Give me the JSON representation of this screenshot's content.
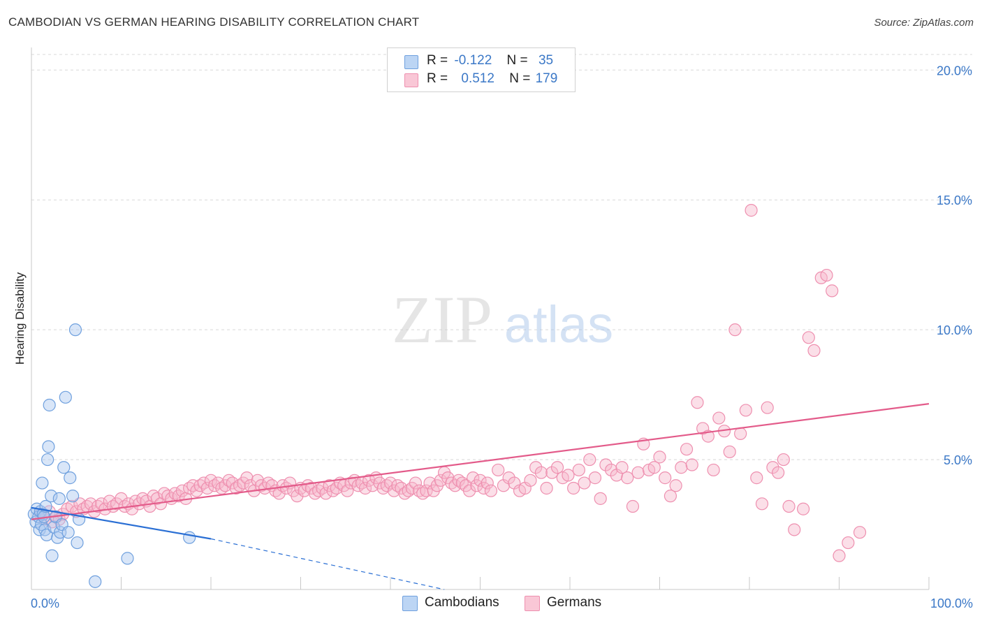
{
  "title": "CAMBODIAN VS GERMAN HEARING DISABILITY CORRELATION CHART",
  "source": "Source: ZipAtlas.com",
  "watermark": {
    "zip": "ZIP",
    "atlas": "atlas"
  },
  "legend": {
    "rows": [
      {
        "r_label": "R =",
        "r_value": "-0.122",
        "n_label": "N =",
        "n_value": "35"
      },
      {
        "r_label": "R =",
        "r_value": "0.512",
        "n_label": "N =",
        "n_value": "179"
      }
    ]
  },
  "bottom_legend": {
    "cambodians": "Cambodians",
    "germans": "Germans"
  },
  "colors": {
    "cambodian_fill": "#aac8f0",
    "cambodian_stroke": "#6fa0de",
    "cambodian_line": "#2a6fd4",
    "german_fill": "#f7b9cc",
    "german_stroke": "#ee8faf",
    "german_line": "#e35b8a",
    "tick_text": "#3b78c7",
    "grid": "#d8d8d8"
  },
  "chart_data": {
    "type": "scatter",
    "title": "CAMBODIAN VS GERMAN HEARING DISABILITY CORRELATION CHART",
    "xlabel": "",
    "ylabel": "Hearing Disability",
    "xlim": [
      0,
      100
    ],
    "ylim": [
      0,
      20.6
    ],
    "x_tick_labels": [
      "0.0%",
      "100.0%"
    ],
    "y_ticks": [
      5,
      10,
      15,
      20
    ],
    "y_tick_labels": [
      "5.0%",
      "10.0%",
      "15.0%",
      "20.0%"
    ],
    "series": [
      {
        "name": "Cambodians",
        "r": -0.122,
        "n": 35,
        "trend": {
          "x_start": 0,
          "y_start": 3.15,
          "x_solid_end": 20,
          "y_solid_end": 1.95,
          "x_dash_end": 46,
          "y_dash_end": 0.0
        },
        "points": [
          [
            0.3,
            2.9
          ],
          [
            0.5,
            2.6
          ],
          [
            0.6,
            3.1
          ],
          [
            0.8,
            2.8
          ],
          [
            0.9,
            2.3
          ],
          [
            1.0,
            3.0
          ],
          [
            1.1,
            2.5
          ],
          [
            1.2,
            4.1
          ],
          [
            1.3,
            2.9
          ],
          [
            1.4,
            2.8
          ],
          [
            1.5,
            2.3
          ],
          [
            1.6,
            3.2
          ],
          [
            1.7,
            2.1
          ],
          [
            1.8,
            5.0
          ],
          [
            1.9,
            5.5
          ],
          [
            2.0,
            7.1
          ],
          [
            2.2,
            3.6
          ],
          [
            2.3,
            1.3
          ],
          [
            2.5,
            2.4
          ],
          [
            2.7,
            2.8
          ],
          [
            2.9,
            2.0
          ],
          [
            3.1,
            3.5
          ],
          [
            3.2,
            2.2
          ],
          [
            3.4,
            2.5
          ],
          [
            3.6,
            4.7
          ],
          [
            3.8,
            7.4
          ],
          [
            4.1,
            2.2
          ],
          [
            4.3,
            4.3
          ],
          [
            4.6,
            3.6
          ],
          [
            4.9,
            10.0
          ],
          [
            5.1,
            1.8
          ],
          [
            5.3,
            2.7
          ],
          [
            7.1,
            0.3
          ],
          [
            10.7,
            1.2
          ],
          [
            17.6,
            2.0
          ]
        ]
      },
      {
        "name": "Germans",
        "r": 0.512,
        "n": 179,
        "trend": {
          "x_start": 0,
          "y_start": 2.7,
          "x_end": 100,
          "y_end": 7.15
        },
        "points": [
          [
            1.0,
            2.9
          ],
          [
            1.5,
            2.7
          ],
          [
            2.0,
            3.0
          ],
          [
            2.3,
            2.6
          ],
          [
            2.8,
            2.8
          ],
          [
            3.1,
            2.7
          ],
          [
            3.5,
            2.9
          ],
          [
            4.0,
            3.1
          ],
          [
            4.5,
            3.2
          ],
          [
            5.0,
            3.0
          ],
          [
            5.4,
            3.3
          ],
          [
            5.8,
            3.1
          ],
          [
            6.2,
            3.2
          ],
          [
            6.6,
            3.3
          ],
          [
            7.0,
            3.0
          ],
          [
            7.4,
            3.2
          ],
          [
            7.8,
            3.3
          ],
          [
            8.2,
            3.1
          ],
          [
            8.7,
            3.4
          ],
          [
            9.1,
            3.2
          ],
          [
            9.5,
            3.3
          ],
          [
            10.0,
            3.5
          ],
          [
            10.4,
            3.2
          ],
          [
            10.8,
            3.3
          ],
          [
            11.2,
            3.1
          ],
          [
            11.6,
            3.4
          ],
          [
            12.0,
            3.3
          ],
          [
            12.4,
            3.5
          ],
          [
            12.8,
            3.4
          ],
          [
            13.2,
            3.2
          ],
          [
            13.6,
            3.6
          ],
          [
            14.0,
            3.5
          ],
          [
            14.4,
            3.3
          ],
          [
            14.8,
            3.7
          ],
          [
            15.2,
            3.6
          ],
          [
            15.6,
            3.5
          ],
          [
            16.0,
            3.7
          ],
          [
            16.4,
            3.6
          ],
          [
            16.8,
            3.8
          ],
          [
            17.2,
            3.5
          ],
          [
            17.6,
            3.9
          ],
          [
            18.0,
            4.0
          ],
          [
            18.4,
            3.8
          ],
          [
            18.8,
            4.0
          ],
          [
            19.2,
            4.1
          ],
          [
            19.6,
            3.9
          ],
          [
            20.0,
            4.2
          ],
          [
            20.4,
            4.0
          ],
          [
            20.8,
            4.1
          ],
          [
            21.2,
            3.9
          ],
          [
            21.6,
            4.0
          ],
          [
            22.0,
            4.2
          ],
          [
            22.4,
            4.1
          ],
          [
            22.8,
            3.9
          ],
          [
            23.2,
            4.0
          ],
          [
            23.6,
            4.1
          ],
          [
            24.0,
            4.3
          ],
          [
            24.4,
            4.0
          ],
          [
            24.8,
            3.8
          ],
          [
            25.2,
            4.2
          ],
          [
            25.6,
            4.0
          ],
          [
            26.0,
            3.9
          ],
          [
            26.4,
            4.1
          ],
          [
            26.8,
            4.0
          ],
          [
            27.2,
            3.8
          ],
          [
            27.6,
            3.7
          ],
          [
            28.0,
            4.0
          ],
          [
            28.4,
            3.9
          ],
          [
            28.8,
            4.1
          ],
          [
            29.2,
            3.8
          ],
          [
            29.6,
            3.6
          ],
          [
            30.0,
            3.9
          ],
          [
            30.4,
            3.8
          ],
          [
            30.8,
            4.0
          ],
          [
            31.2,
            3.9
          ],
          [
            31.6,
            3.7
          ],
          [
            32.0,
            3.8
          ],
          [
            32.4,
            3.9
          ],
          [
            32.8,
            3.7
          ],
          [
            33.2,
            4.0
          ],
          [
            33.6,
            3.8
          ],
          [
            34.0,
            3.9
          ],
          [
            34.4,
            4.1
          ],
          [
            34.8,
            4.0
          ],
          [
            35.2,
            3.8
          ],
          [
            35.6,
            4.1
          ],
          [
            36.0,
            4.2
          ],
          [
            36.4,
            4.0
          ],
          [
            36.8,
            4.1
          ],
          [
            37.2,
            3.9
          ],
          [
            37.6,
            4.2
          ],
          [
            38.0,
            4.0
          ],
          [
            38.4,
            4.3
          ],
          [
            38.8,
            4.1
          ],
          [
            39.2,
            3.9
          ],
          [
            39.6,
            4.0
          ],
          [
            40.0,
            4.1
          ],
          [
            40.4,
            3.8
          ],
          [
            40.8,
            4.0
          ],
          [
            41.2,
            3.9
          ],
          [
            41.6,
            3.7
          ],
          [
            42.0,
            3.8
          ],
          [
            42.4,
            3.9
          ],
          [
            42.8,
            4.1
          ],
          [
            43.2,
            3.8
          ],
          [
            43.6,
            3.7
          ],
          [
            44.0,
            3.8
          ],
          [
            44.4,
            4.1
          ],
          [
            44.8,
            3.8
          ],
          [
            45.2,
            4.0
          ],
          [
            45.6,
            4.2
          ],
          [
            46.0,
            4.5
          ],
          [
            46.4,
            4.3
          ],
          [
            46.8,
            4.1
          ],
          [
            47.2,
            4.0
          ],
          [
            47.6,
            4.2
          ],
          [
            48.0,
            4.1
          ],
          [
            48.4,
            4.0
          ],
          [
            48.8,
            3.8
          ],
          [
            49.2,
            4.3
          ],
          [
            49.6,
            4.0
          ],
          [
            50.0,
            4.2
          ],
          [
            50.4,
            3.9
          ],
          [
            50.8,
            4.1
          ],
          [
            51.2,
            3.8
          ],
          [
            52.0,
            4.6
          ],
          [
            52.6,
            4.0
          ],
          [
            53.2,
            4.3
          ],
          [
            53.8,
            4.1
          ],
          [
            54.4,
            3.8
          ],
          [
            55.0,
            3.9
          ],
          [
            55.6,
            4.2
          ],
          [
            56.2,
            4.7
          ],
          [
            56.8,
            4.5
          ],
          [
            57.4,
            3.9
          ],
          [
            58.0,
            4.5
          ],
          [
            58.6,
            4.7
          ],
          [
            59.2,
            4.3
          ],
          [
            59.8,
            4.4
          ],
          [
            60.4,
            3.9
          ],
          [
            61.0,
            4.6
          ],
          [
            61.6,
            4.1
          ],
          [
            62.2,
            5.0
          ],
          [
            62.8,
            4.3
          ],
          [
            63.4,
            3.5
          ],
          [
            64.0,
            4.8
          ],
          [
            64.6,
            4.6
          ],
          [
            65.2,
            4.4
          ],
          [
            65.8,
            4.7
          ],
          [
            66.4,
            4.3
          ],
          [
            67.0,
            3.2
          ],
          [
            67.6,
            4.5
          ],
          [
            68.2,
            5.6
          ],
          [
            68.8,
            4.6
          ],
          [
            69.4,
            4.7
          ],
          [
            70.0,
            5.1
          ],
          [
            70.6,
            4.3
          ],
          [
            71.2,
            3.6
          ],
          [
            71.8,
            4.0
          ],
          [
            72.4,
            4.7
          ],
          [
            73.0,
            5.4
          ],
          [
            73.6,
            4.8
          ],
          [
            74.2,
            7.2
          ],
          [
            74.8,
            6.2
          ],
          [
            75.4,
            5.9
          ],
          [
            76.0,
            4.6
          ],
          [
            76.6,
            6.6
          ],
          [
            77.2,
            6.1
          ],
          [
            77.8,
            5.3
          ],
          [
            78.4,
            10.0
          ],
          [
            79.0,
            6.0
          ],
          [
            79.6,
            6.9
          ],
          [
            80.2,
            14.6
          ],
          [
            80.8,
            4.3
          ],
          [
            81.4,
            3.3
          ],
          [
            82.0,
            7.0
          ],
          [
            82.6,
            4.7
          ],
          [
            83.2,
            4.5
          ],
          [
            83.8,
            5.0
          ],
          [
            84.4,
            3.2
          ],
          [
            85.0,
            2.3
          ],
          [
            86.0,
            3.1
          ],
          [
            86.6,
            9.7
          ],
          [
            87.2,
            9.2
          ],
          [
            88.0,
            12.0
          ],
          [
            88.6,
            12.1
          ],
          [
            89.2,
            11.5
          ],
          [
            90.0,
            1.3
          ],
          [
            91.0,
            1.8
          ],
          [
            92.3,
            2.2
          ]
        ]
      }
    ]
  }
}
